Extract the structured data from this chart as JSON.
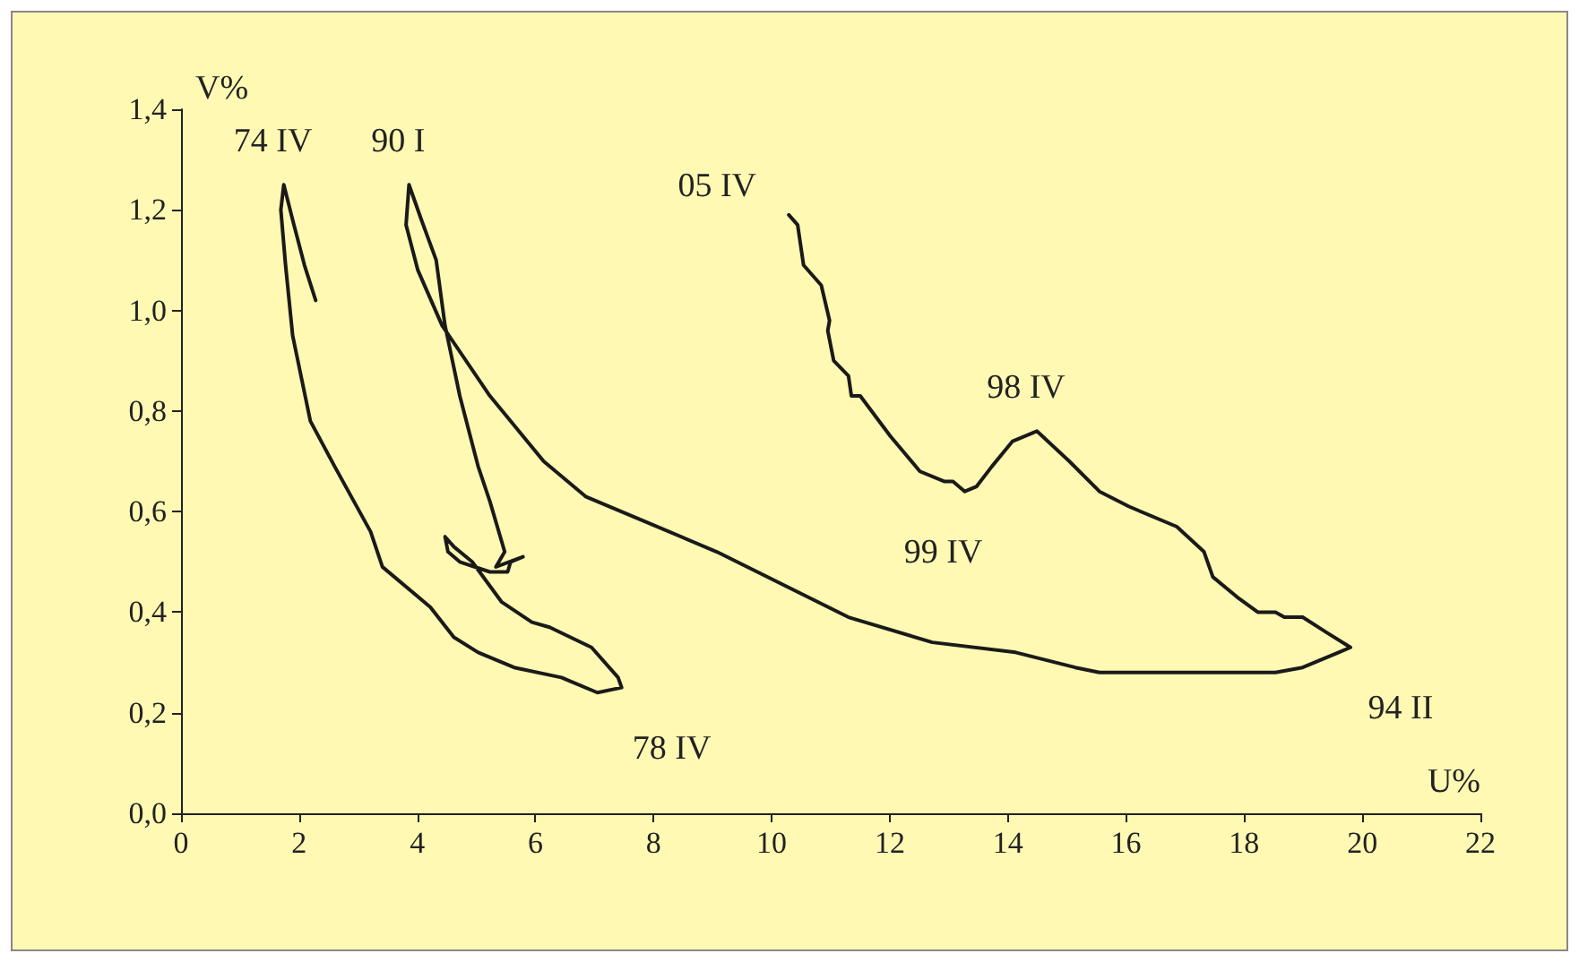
{
  "chart_data": {
    "type": "line",
    "xlabel": "U%",
    "ylabel": "V%",
    "x": [
      2.28,
      2.09,
      1.89,
      1.74,
      1.69,
      1.77,
      1.89,
      2.19,
      2.6,
      3.21,
      3.41,
      4.22,
      4.62,
      5.03,
      5.64,
      6.44,
      7.05,
      7.46,
      7.4,
      6.95,
      6.24,
      5.94,
      5.43,
      4.93,
      4.62,
      4.47,
      4.52,
      4.72,
      5.23,
      5.53,
      5.58,
      5.79,
      5.33,
      5.48,
      5.23,
      5.03,
      4.72,
      4.47,
      4.32,
      4.07,
      3.86,
      3.81,
      4.01,
      4.42,
      5.23,
      6.14,
      6.85,
      7.86,
      9.07,
      11.3,
      12.72,
      14.13,
      15.14,
      15.55,
      18.53,
      18.99,
      19.6,
      19.8,
      19.39,
      18.99,
      18.68,
      18.53,
      18.23,
      17.88,
      17.47,
      17.32,
      16.86,
      16.05,
      15.55,
      15.04,
      14.49,
      14.08,
      13.73,
      13.47,
      13.27,
      13.07,
      12.92,
      12.51,
      12.01,
      11.5,
      11.35,
      11.3,
      11.05,
      10.95,
      10.98,
      10.84,
      10.54,
      10.44,
      10.29
    ],
    "series": [
      {
        "color": "#1a1a1a",
        "values": [
          1.02,
          1.09,
          1.18,
          1.25,
          1.2,
          1.09,
          0.95,
          0.78,
          0.69,
          0.56,
          0.49,
          0.41,
          0.35,
          0.32,
          0.29,
          0.27,
          0.24,
          0.25,
          0.27,
          0.33,
          0.37,
          0.38,
          0.42,
          0.5,
          0.53,
          0.55,
          0.52,
          0.5,
          0.48,
          0.48,
          0.5,
          0.51,
          0.49,
          0.52,
          0.62,
          0.69,
          0.83,
          0.97,
          1.1,
          1.18,
          1.25,
          1.17,
          1.08,
          0.97,
          0.83,
          0.7,
          0.63,
          0.58,
          0.52,
          0.39,
          0.34,
          0.32,
          0.29,
          0.28,
          0.28,
          0.29,
          0.32,
          0.33,
          0.36,
          0.39,
          0.39,
          0.4,
          0.4,
          0.43,
          0.47,
          0.52,
          0.57,
          0.61,
          0.64,
          0.7,
          0.76,
          0.74,
          0.69,
          0.65,
          0.64,
          0.66,
          0.66,
          0.68,
          0.75,
          0.83,
          0.83,
          0.87,
          0.9,
          0.96,
          0.98,
          1.05,
          1.09,
          1.17,
          1.19
        ]
      }
    ],
    "xlim": [
      0,
      22
    ],
    "xticks": [
      0,
      2,
      4,
      6,
      8,
      10,
      12,
      14,
      16,
      18,
      20,
      22
    ],
    "ylim": [
      0,
      1.4
    ],
    "yticks": [
      {
        "value": 0,
        "label": "0,0"
      },
      {
        "value": 0.2,
        "label": "0,2"
      },
      {
        "value": 0.4,
        "label": "0,4"
      },
      {
        "value": 0.6,
        "label": "0,6"
      },
      {
        "value": 0.8,
        "label": "0,8"
      },
      {
        "value": 1,
        "label": "1,0"
      },
      {
        "value": 1.2,
        "label": "1,2"
      },
      {
        "value": 1.4,
        "label": "1,4"
      }
    ],
    "grid": false,
    "marker": "none",
    "line_style": "solid",
    "annotations": [
      {
        "text": "74 IV",
        "x": 1.74,
        "y": 1.25
      },
      {
        "text": "90 I",
        "x": 3.86,
        "y": 1.25
      },
      {
        "text": "05 IV",
        "x": 10.29,
        "y": 1.19
      },
      {
        "text": "98 IV",
        "x": 14.49,
        "y": 0.76
      },
      {
        "text": "99 IV",
        "x": 13.27,
        "y": 0.64
      },
      {
        "text": "94 II",
        "x": 19.8,
        "y": 0.33
      },
      {
        "text": "78 IV",
        "x": 7.46,
        "y": 0.25
      }
    ]
  }
}
